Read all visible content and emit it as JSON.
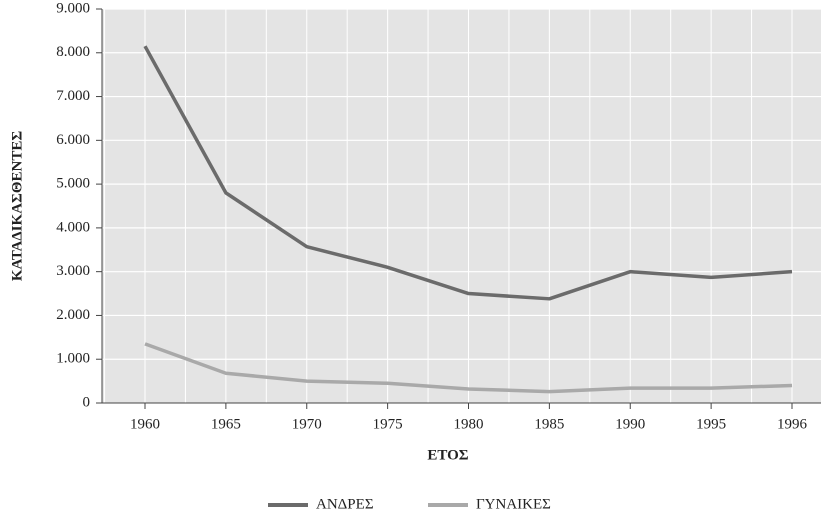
{
  "chart_data": {
    "type": "line",
    "xlabel": "ΕΤΟΣ",
    "ylabel": "ΚΑΤΑΔΙΚΑΣΘΕΝΤΕΣ",
    "categories": [
      "1960",
      "1965",
      "1970",
      "1975",
      "1980",
      "1985",
      "1990",
      "1995",
      "1996"
    ],
    "series": [
      {
        "name": "ΑΝΔΡΕΣ",
        "color": "#6b6b6b",
        "values": [
          8150,
          4800,
          3570,
          3100,
          2500,
          2380,
          3000,
          2870,
          3000
        ]
      },
      {
        "name": "ΓΥΝΑΙΚΕΣ",
        "color": "#a9a9a9",
        "values": [
          1350,
          680,
          500,
          450,
          320,
          260,
          340,
          340,
          400
        ]
      }
    ],
    "ylim": [
      0,
      9000
    ],
    "yticks": [
      0,
      {
        "value": 1000,
        "label": "1.000"
      },
      {
        "value": 2000,
        "label": "2.000"
      },
      {
        "value": 3000,
        "label": "3.000"
      },
      {
        "value": 4000,
        "label": "4.000"
      },
      {
        "value": 5000,
        "label": "5.000"
      },
      {
        "value": 6000,
        "label": "6.000"
      },
      {
        "value": 7000,
        "label": "7.000"
      },
      {
        "value": 8000,
        "label": "8.000"
      },
      {
        "value": 9000,
        "label": "9.000"
      }
    ],
    "grid": true,
    "legend": "bottom"
  }
}
